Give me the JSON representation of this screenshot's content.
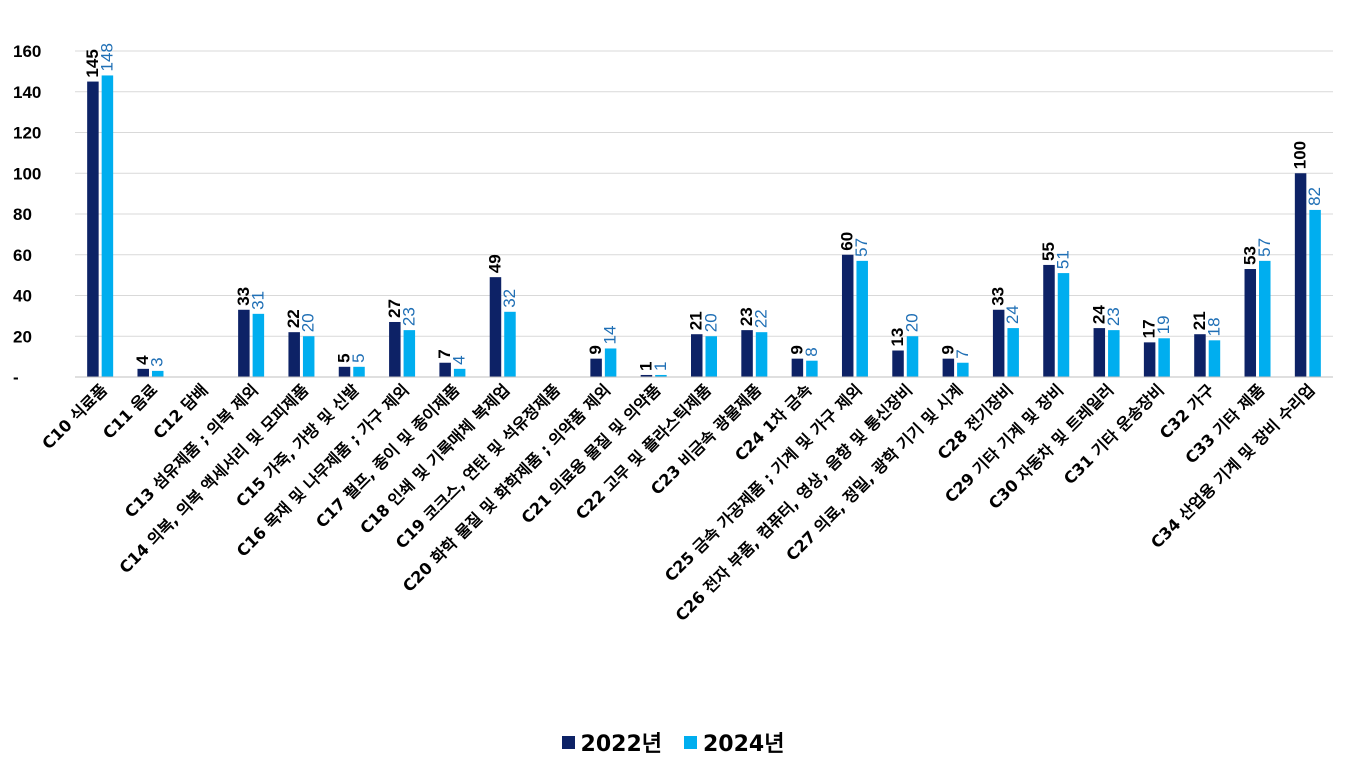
{
  "chart_data": {
    "type": "bar",
    "categories": [
      "C10 식료품",
      "C11 음료",
      "C12 담배",
      "C13 섬유제품 ; 의복 제외",
      "C14 의복, 의복 액세서리 및 모피제품",
      "C15 가죽, 가방 및 신발",
      "C16 목재 및 나무제품 ; 가구 제외",
      "C17 펄프, 종이 및 종이제품",
      "C18 인쇄 및 기록매체 복제업",
      "C19 코크스, 연탄 및 석유정제품",
      "C20 화학 물질 및 화학제품 ; 의약품 제외",
      "C21 의료용 물질 및 의약품",
      "C22 고무 및 플라스틱제품",
      "C23 비금속 광물제품",
      "C24 1차 금속",
      "C25 금속 가공제품 ; 기계 및 가구 제외",
      "C26 전자 부품, 컴퓨터, 영상, 음향 및 통신장비",
      "C27 의료, 정밀, 광학 기기 및 시계",
      "C28 전기장비",
      "C29 기타 기계 및 장비",
      "C30 자동차 및 트레일러",
      "C31 기타 운송장비",
      "C32 가구",
      "C33 기타 제품",
      "C34 산업용 기계 및 장비 수리업"
    ],
    "series": [
      {
        "name": "2022년",
        "color": "#0d2266",
        "label_color": "#000000",
        "values": [
          145,
          4,
          null,
          33,
          22,
          5,
          27,
          7,
          49,
          null,
          9,
          1,
          21,
          23,
          9,
          60,
          13,
          9,
          33,
          55,
          24,
          17,
          21,
          53,
          100
        ]
      },
      {
        "name": "2024년",
        "color": "#00aeef",
        "label_color": "#1f6fb5",
        "values": [
          148,
          3,
          null,
          31,
          20,
          5,
          23,
          4,
          32,
          null,
          14,
          1,
          20,
          22,
          8,
          57,
          20,
          7,
          24,
          51,
          23,
          19,
          18,
          57,
          82
        ]
      }
    ],
    "y_ticks": [
      "-",
      "20",
      "40",
      "60",
      "80",
      "100",
      "120",
      "140",
      "160"
    ],
    "ylim": [
      0,
      160
    ],
    "gridlines": true,
    "legend": {
      "position": "bottom"
    },
    "title": "",
    "xlabel": "",
    "ylabel": ""
  }
}
